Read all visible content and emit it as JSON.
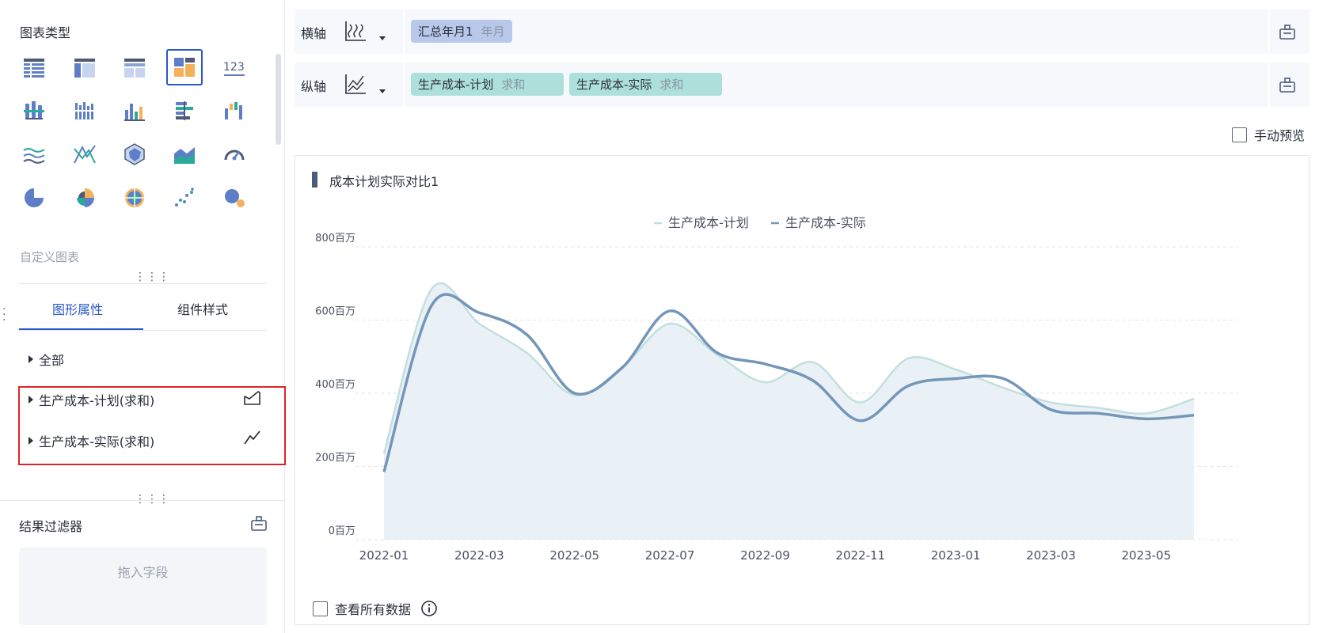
{
  "left_panel": {
    "chart_type_title": "图表类型",
    "number_icon_text": "123",
    "custom_chart": "自定义图表",
    "tabs": [
      {
        "label": "图形属性",
        "active": true
      },
      {
        "label": "组件样式",
        "active": false
      }
    ],
    "properties": [
      {
        "label": "全部"
      },
      {
        "label": "生产成本-计划(求和)",
        "icon": "area-chart-icon"
      },
      {
        "label": "生产成本-实际(求和)",
        "icon": "line-chart-icon"
      }
    ],
    "result_filter_title": "结果过滤器",
    "dropzone_text": "拖入字段"
  },
  "axes": {
    "x_label": "横轴",
    "y_label": "纵轴",
    "x_fields": [
      {
        "name": "汇总年月1",
        "agg": "年月"
      }
    ],
    "y_fields": [
      {
        "name": "生产成本-计划",
        "agg": "求和"
      },
      {
        "name": "生产成本-实际",
        "agg": "求和"
      }
    ]
  },
  "manual_preview": "手动预览",
  "view_all_data": "查看所有数据",
  "colors": {
    "accent": "#2a58c8",
    "plan": "#c2dfde",
    "actual": "#7396b9",
    "area": "#eaf1f6",
    "highlight": "#e0232b"
  },
  "chart_data": {
    "type": "line",
    "title": "成本计划实际对比1",
    "x": [
      "2022-01",
      "2022-02",
      "2022-03",
      "2022-04",
      "2022-05",
      "2022-06",
      "2022-07",
      "2022-08",
      "2022-09",
      "2022-10",
      "2022-11",
      "2022-12",
      "2023-01",
      "2023-02",
      "2023-03",
      "2023-04",
      "2023-05",
      "2023-06"
    ],
    "x_tick_labels": [
      "2022-01",
      "2022-03",
      "2022-05",
      "2022-07",
      "2022-09",
      "2022-11",
      "2023-01",
      "2023-03",
      "2023-05"
    ],
    "y_tick_labels": [
      "0百万",
      "200百万",
      "400百万",
      "600百万",
      "800百万"
    ],
    "y_ticks": [
      0,
      200,
      400,
      600,
      800
    ],
    "ylim": [
      0,
      800
    ],
    "series": [
      {
        "name": "生产成本-计划",
        "values": [
          235,
          685,
          590,
          510,
          395,
          470,
          590,
          505,
          430,
          485,
          375,
          495,
          465,
          415,
          375,
          360,
          345,
          385
        ]
      },
      {
        "name": "生产成本-实际",
        "values": [
          185,
          640,
          620,
          560,
          400,
          470,
          625,
          510,
          480,
          435,
          325,
          420,
          440,
          440,
          355,
          345,
          330,
          340
        ]
      }
    ],
    "legend_position": "top-center",
    "grid": true
  }
}
